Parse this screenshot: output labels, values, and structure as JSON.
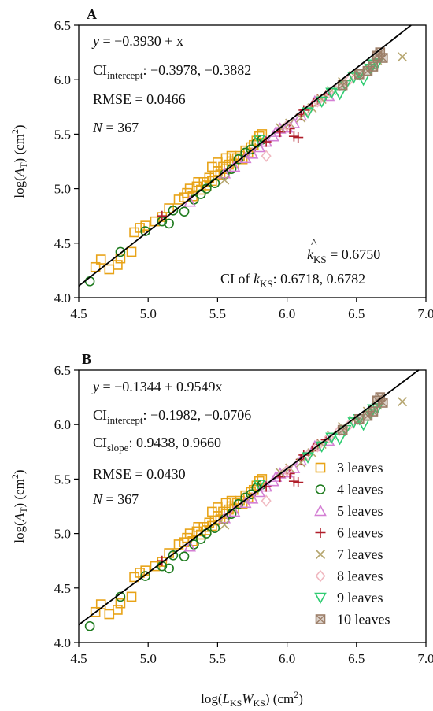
{
  "chart_data": [
    {
      "type": "scatter",
      "panel_label": "A",
      "xlabel": "",
      "ylabel": "log(A_T) (cm^2)",
      "xlim": [
        4.5,
        7.0
      ],
      "ylim": [
        4.0,
        6.5
      ],
      "xticks": [
        "4.5",
        "5.0",
        "5.5",
        "6.0",
        "6.5",
        "7.0"
      ],
      "yticks": [
        "4.0",
        "4.5",
        "5.0",
        "5.5",
        "6.0",
        "6.5"
      ],
      "fit": {
        "intercept": -0.393,
        "slope": 1.0
      },
      "annotations": {
        "equation": "y = −0.3930 + x",
        "ci_intercept_label": "CI",
        "ci_intercept_sub": "intercept",
        "ci_intercept_values": ": −0.3978, −0.3882",
        "rmse": "RMSE = 0.0466",
        "n": "N = 367",
        "khat_value": " = 0.6750",
        "ci_k_label": "CI of ",
        "ci_k_values": ": 0.6718, 0.6782"
      },
      "series": [
        {
          "name": "3 leaves",
          "marker": "square",
          "color": "#E8A317",
          "points": [
            [
              4.62,
              4.28
            ],
            [
              4.66,
              4.35
            ],
            [
              4.72,
              4.26
            ],
            [
              4.78,
              4.3
            ],
            [
              4.8,
              4.36
            ],
            [
              4.88,
              4.42
            ],
            [
              4.9,
              4.6
            ],
            [
              4.94,
              4.64
            ],
            [
              4.98,
              4.66
            ],
            [
              5.05,
              4.7
            ],
            [
              5.1,
              4.74
            ],
            [
              5.15,
              4.82
            ],
            [
              5.22,
              4.9
            ],
            [
              5.28,
              4.96
            ],
            [
              5.3,
              5.0
            ],
            [
              5.32,
              4.93
            ],
            [
              5.35,
              5.02
            ],
            [
              5.38,
              4.99
            ],
            [
              5.4,
              5.06
            ],
            [
              5.42,
              5.03
            ],
            [
              5.44,
              5.1
            ],
            [
              5.46,
              5.07
            ],
            [
              5.48,
              5.12
            ],
            [
              5.5,
              5.16
            ],
            [
              5.52,
              5.13
            ],
            [
              5.54,
              5.2
            ],
            [
              5.56,
              5.18
            ],
            [
              5.58,
              5.22
            ],
            [
              5.6,
              5.25
            ],
            [
              5.62,
              5.23
            ],
            [
              5.64,
              5.28
            ],
            [
              5.66,
              5.3
            ],
            [
              5.68,
              5.27
            ],
            [
              5.7,
              5.35
            ],
            [
              5.72,
              5.33
            ],
            [
              5.74,
              5.38
            ],
            [
              5.76,
              5.4
            ],
            [
              5.78,
              5.44
            ],
            [
              5.8,
              5.48
            ],
            [
              5.82,
              5.5
            ],
            [
              5.46,
              5.2
            ],
            [
              5.5,
              5.24
            ],
            [
              5.56,
              5.28
            ],
            [
              5.6,
              5.3
            ],
            [
              5.36,
              5.06
            ],
            [
              5.26,
              4.92
            ]
          ]
        },
        {
          "name": "4 leaves",
          "marker": "circle",
          "color": "#1E7B1E",
          "points": [
            [
              4.58,
              4.15
            ],
            [
              4.8,
              4.42
            ],
            [
              4.98,
              4.61
            ],
            [
              5.1,
              4.7
            ],
            [
              5.15,
              4.68
            ],
            [
              5.18,
              4.8
            ],
            [
              5.26,
              4.79
            ],
            [
              5.33,
              4.9
            ],
            [
              5.38,
              4.95
            ],
            [
              5.42,
              5.0
            ],
            [
              5.48,
              5.05
            ],
            [
              5.55,
              5.13
            ],
            [
              5.6,
              5.18
            ],
            [
              5.65,
              5.27
            ],
            [
              5.7,
              5.33
            ],
            [
              5.74,
              5.36
            ],
            [
              5.78,
              5.42
            ],
            [
              5.82,
              5.45
            ]
          ]
        },
        {
          "name": "5 leaves",
          "marker": "triangle-up",
          "color": "#D47FD4",
          "points": [
            [
              5.3,
              4.88
            ],
            [
              5.55,
              5.14
            ],
            [
              5.62,
              5.2
            ],
            [
              5.7,
              5.28
            ],
            [
              5.75,
              5.32
            ],
            [
              5.8,
              5.38
            ],
            [
              5.85,
              5.43
            ],
            [
              5.9,
              5.48
            ],
            [
              5.92,
              5.52
            ],
            [
              5.95,
              5.55
            ],
            [
              6.0,
              5.56
            ],
            [
              6.05,
              5.6
            ],
            [
              6.1,
              5.67
            ],
            [
              6.2,
              5.8
            ],
            [
              6.3,
              5.85
            ]
          ]
        },
        {
          "name": "6 leaves",
          "marker": "plus",
          "color": "#B01E2A",
          "points": [
            [
              5.1,
              4.75
            ],
            [
              5.85,
              5.43
            ],
            [
              5.95,
              5.52
            ],
            [
              6.02,
              5.55
            ],
            [
              6.05,
              5.48
            ],
            [
              6.08,
              5.47
            ],
            [
              6.1,
              5.68
            ],
            [
              6.12,
              5.72
            ],
            [
              6.18,
              5.76
            ],
            [
              6.22,
              5.82
            ],
            [
              6.28,
              5.86
            ]
          ]
        },
        {
          "name": "7 leaves",
          "marker": "x",
          "color": "#B5A56E",
          "points": [
            [
              5.55,
              5.08
            ],
            [
              5.95,
              5.56
            ],
            [
              6.02,
              5.6
            ],
            [
              6.1,
              5.65
            ],
            [
              6.18,
              5.74
            ],
            [
              6.25,
              5.82
            ],
            [
              6.32,
              5.9
            ],
            [
              6.4,
              5.98
            ],
            [
              6.48,
              6.04
            ],
            [
              6.58,
              6.12
            ],
            [
              6.65,
              6.18
            ],
            [
              6.83,
              6.21
            ]
          ]
        },
        {
          "name": "8 leaves",
          "marker": "diamond",
          "color": "#F0B8C0",
          "points": [
            [
              5.85,
              5.3
            ],
            [
              6.0,
              5.58
            ],
            [
              6.15,
              5.72
            ],
            [
              6.22,
              5.8
            ],
            [
              6.3,
              5.88
            ],
            [
              6.38,
              5.95
            ],
            [
              6.45,
              6.0
            ]
          ]
        },
        {
          "name": "9 leaves",
          "marker": "triangle-down",
          "color": "#2ECC71",
          "points": [
            [
              5.8,
              5.45
            ],
            [
              6.15,
              5.7
            ],
            [
              6.25,
              5.8
            ],
            [
              6.32,
              5.88
            ],
            [
              6.38,
              5.87
            ],
            [
              6.42,
              5.95
            ],
            [
              6.48,
              6.02
            ],
            [
              6.52,
              6.05
            ],
            [
              6.55,
              6.0
            ],
            [
              6.6,
              6.1
            ],
            [
              6.62,
              6.14
            ],
            [
              6.65,
              6.15
            ]
          ]
        },
        {
          "name": "10 leaves",
          "marker": "boxed-x",
          "color": "#9C7E68",
          "points": [
            [
              6.4,
              5.95
            ],
            [
              6.52,
              6.05
            ],
            [
              6.58,
              6.08
            ],
            [
              6.62,
              6.12
            ],
            [
              6.65,
              6.22
            ],
            [
              6.67,
              6.25
            ],
            [
              6.69,
              6.2
            ]
          ]
        }
      ]
    },
    {
      "type": "scatter",
      "panel_label": "B",
      "xlabel": "log(L_KS W_KS) (cm^2)",
      "ylabel": "log(A_T) (cm^2)",
      "xlim": [
        4.5,
        7.0
      ],
      "ylim": [
        4.0,
        6.5
      ],
      "xticks": [
        "4.5",
        "5.0",
        "5.5",
        "6.0",
        "6.5",
        "7.0"
      ],
      "yticks": [
        "4.0",
        "4.5",
        "5.0",
        "5.5",
        "6.0",
        "6.5"
      ],
      "fit": {
        "intercept": -0.1344,
        "slope": 0.9549
      },
      "legend_position": "right",
      "annotations": {
        "equation": "y = −0.1344 + 0.9549x",
        "ci_intercept_label": "CI",
        "ci_intercept_sub": "intercept",
        "ci_intercept_values": ": −0.1982, −0.0706",
        "ci_slope_label": "CI",
        "ci_slope_sub": "slope",
        "ci_slope_values": ": 0.9438, 0.9660",
        "rmse": "RMSE = 0.0430",
        "n": "N = 367"
      },
      "series_ref": "same data as panel A"
    }
  ]
}
